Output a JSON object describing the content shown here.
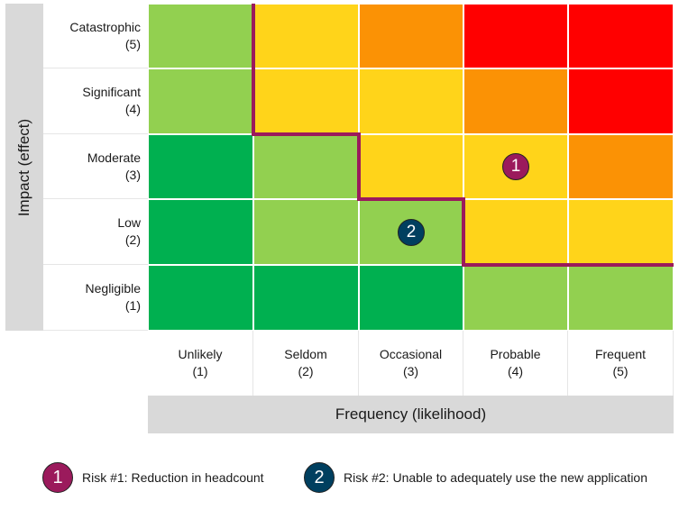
{
  "y_axis_label": "Impact (effect)",
  "x_axis_label": "Frequency (likelihood)",
  "impact_levels": [
    {
      "name": "Catastrophic",
      "score": "(5)"
    },
    {
      "name": "Significant",
      "score": "(4)"
    },
    {
      "name": "Moderate",
      "score": "(3)"
    },
    {
      "name": "Low",
      "score": "(2)"
    },
    {
      "name": "Negligible",
      "score": "(1)"
    }
  ],
  "frequency_levels": [
    {
      "name": "Unlikely",
      "score": "(1)"
    },
    {
      "name": "Seldom",
      "score": "(2)"
    },
    {
      "name": "Occasional",
      "score": "(3)"
    },
    {
      "name": "Probable",
      "score": "(4)"
    },
    {
      "name": "Frequent",
      "score": "(5)"
    }
  ],
  "colors": {
    "very_low": "#00b050",
    "low": "#92d050",
    "medium": "#ffd41a",
    "high": "#fb9205",
    "very_high": "#ff0000",
    "threshold_line": "#9b1a5c"
  },
  "matrix_rows_top_to_bottom": [
    [
      "low",
      "medium",
      "high",
      "very_high",
      "very_high"
    ],
    [
      "low",
      "medium",
      "medium",
      "high",
      "very_high"
    ],
    [
      "very_low",
      "low",
      "medium",
      "medium",
      "high"
    ],
    [
      "very_low",
      "low",
      "low",
      "medium",
      "medium"
    ],
    [
      "very_low",
      "very_low",
      "very_low",
      "low",
      "low"
    ]
  ],
  "risks": [
    {
      "number": "1",
      "label": "Risk #1: Reduction in headcount",
      "frequency": 4,
      "impact": 3,
      "color": "#9b1a5c"
    },
    {
      "number": "2",
      "label": "Risk #2: Unable to adequately use the new application",
      "frequency": 3,
      "impact": 2,
      "color": "#003f5f"
    }
  ]
}
